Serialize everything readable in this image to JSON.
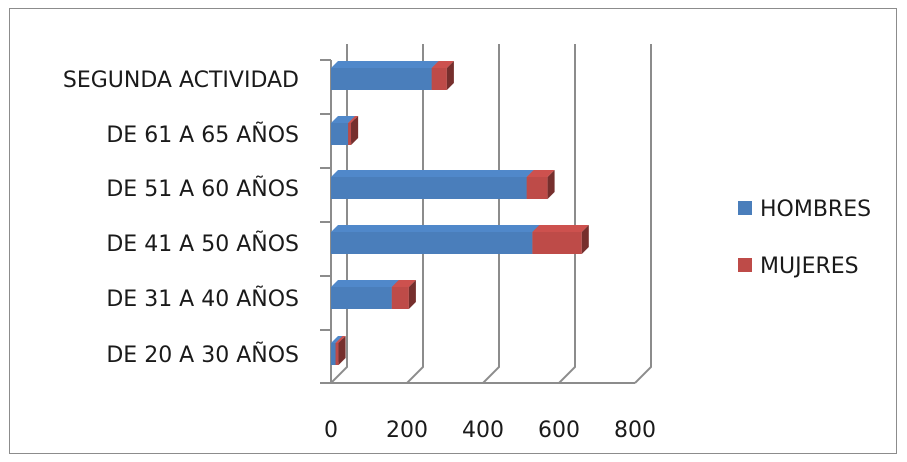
{
  "chart_data": {
    "type": "bar",
    "orientation": "horizontal",
    "stacked": true,
    "three_d": true,
    "categories": [
      "DE 20 A 30 AÑOS",
      "DE 31 A 40 AÑOS",
      "DE 41 A 50 AÑOS",
      "DE 51 A 60 AÑOS",
      "DE 61 A 65 AÑOS",
      "SEGUNDA ACTIVIDAD"
    ],
    "series": [
      {
        "name": "HOMBRES",
        "values": [
          12,
          160,
          530,
          515,
          45,
          265
        ],
        "color": "#4a7ebb"
      },
      {
        "name": "MUJERES",
        "values": [
          8,
          45,
          130,
          55,
          8,
          40
        ],
        "color": "#be4b48"
      }
    ],
    "xlim": [
      0,
      800
    ],
    "xticks": [
      "0",
      "200",
      "400",
      "600",
      "800"
    ],
    "grid": true,
    "legend_position": "right"
  }
}
